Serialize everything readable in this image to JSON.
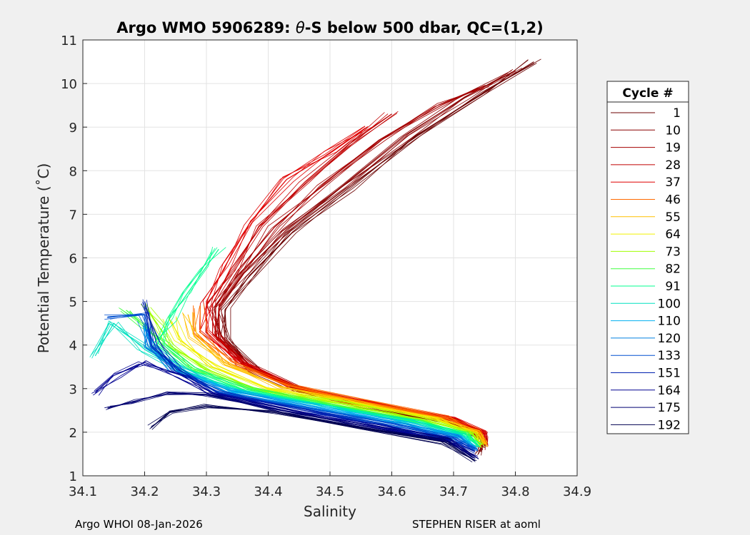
{
  "chart_data": {
    "type": "line",
    "title_pre": "Argo WMO 5906289: ",
    "title_theta": "θ",
    "title_post": "-S below 500 dbar,  QC=(1,2)",
    "xlabel": "Salinity",
    "ylabel": "Potential Temperature (˚C)",
    "xlim": [
      34.1,
      34.9
    ],
    "ylim": [
      1,
      11
    ],
    "xticks": [
      34.1,
      34.2,
      34.3,
      34.4,
      34.5,
      34.6,
      34.7,
      34.8,
      34.9
    ],
    "xtick_labels": [
      "34.1",
      "34.2",
      "34.3",
      "34.4",
      "34.5",
      "34.6",
      "34.7",
      "34.8",
      "34.9"
    ],
    "yticks": [
      1,
      2,
      3,
      4,
      5,
      6,
      7,
      8,
      9,
      10,
      11
    ],
    "ytick_labels": [
      "1",
      "2",
      "3",
      "4",
      "5",
      "6",
      "7",
      "8",
      "9",
      "10",
      "11"
    ],
    "grid": true,
    "legend_title": "Cycle #",
    "legend_position": "outside-right",
    "series": [
      {
        "name": "1",
        "color": "#6b0000",
        "values": [
          [
            34.74,
            1.5
          ],
          [
            34.75,
            1.8
          ],
          [
            34.7,
            2.2
          ],
          [
            34.55,
            2.6
          ],
          [
            34.45,
            2.95
          ],
          [
            34.38,
            3.4
          ],
          [
            34.33,
            4.1
          ],
          [
            34.33,
            4.8
          ],
          [
            34.37,
            5.6
          ],
          [
            34.44,
            6.6
          ],
          [
            34.53,
            7.6
          ],
          [
            34.64,
            8.8
          ],
          [
            34.75,
            9.8
          ],
          [
            34.83,
            10.5
          ]
        ]
      },
      {
        "name": "10",
        "color": "#8a0000",
        "values": [
          [
            34.745,
            1.6
          ],
          [
            34.75,
            1.85
          ],
          [
            34.7,
            2.22
          ],
          [
            34.55,
            2.62
          ],
          [
            34.45,
            2.97
          ],
          [
            34.37,
            3.45
          ],
          [
            34.32,
            4.15
          ],
          [
            34.32,
            4.85
          ],
          [
            34.36,
            5.65
          ],
          [
            34.43,
            6.65
          ],
          [
            34.52,
            7.65
          ],
          [
            34.62,
            8.8
          ],
          [
            34.72,
            9.7
          ],
          [
            34.8,
            10.3
          ]
        ]
      },
      {
        "name": "19",
        "color": "#a50000",
        "values": [
          [
            34.745,
            1.65
          ],
          [
            34.75,
            1.9
          ],
          [
            34.7,
            2.25
          ],
          [
            34.56,
            2.65
          ],
          [
            34.45,
            3.0
          ],
          [
            34.37,
            3.5
          ],
          [
            34.315,
            4.2
          ],
          [
            34.315,
            4.9
          ],
          [
            34.35,
            5.7
          ],
          [
            34.41,
            6.7
          ],
          [
            34.49,
            7.7
          ],
          [
            34.58,
            8.7
          ],
          [
            34.68,
            9.5
          ],
          [
            34.75,
            9.95
          ]
        ]
      },
      {
        "name": "28",
        "color": "#c00000",
        "values": [
          [
            34.75,
            1.7
          ],
          [
            34.75,
            1.95
          ],
          [
            34.7,
            2.28
          ],
          [
            34.56,
            2.68
          ],
          [
            34.45,
            3.02
          ],
          [
            34.36,
            3.55
          ],
          [
            34.31,
            4.25
          ],
          [
            34.31,
            4.95
          ],
          [
            34.34,
            5.75
          ],
          [
            34.39,
            6.75
          ],
          [
            34.46,
            7.75
          ],
          [
            34.53,
            8.6
          ],
          [
            34.6,
            9.3
          ]
        ]
      },
      {
        "name": "37",
        "color": "#e00000",
        "values": [
          [
            34.75,
            1.75
          ],
          [
            34.75,
            2.0
          ],
          [
            34.7,
            2.3
          ],
          [
            34.56,
            2.7
          ],
          [
            34.44,
            3.05
          ],
          [
            34.35,
            3.6
          ],
          [
            34.3,
            4.3
          ],
          [
            34.3,
            5.0
          ],
          [
            34.33,
            5.8
          ],
          [
            34.37,
            6.8
          ],
          [
            34.43,
            7.8
          ],
          [
            34.5,
            8.4
          ],
          [
            34.56,
            9.0
          ]
        ]
      },
      {
        "name": "46",
        "color": "#ff6a00",
        "values": [
          [
            34.75,
            1.75
          ],
          [
            34.74,
            2.02
          ],
          [
            34.69,
            2.32
          ],
          [
            34.55,
            2.72
          ],
          [
            34.43,
            3.08
          ],
          [
            34.34,
            3.62
          ],
          [
            34.29,
            4.3
          ],
          [
            34.29,
            4.9
          ]
        ]
      },
      {
        "name": "55",
        "color": "#ffc000",
        "values": [
          [
            34.75,
            1.72
          ],
          [
            34.74,
            2.0
          ],
          [
            34.68,
            2.3
          ],
          [
            34.54,
            2.7
          ],
          [
            34.42,
            3.05
          ],
          [
            34.33,
            3.55
          ],
          [
            34.28,
            4.2
          ],
          [
            34.27,
            4.7
          ]
        ]
      },
      {
        "name": "64",
        "color": "#f0f000",
        "values": [
          [
            34.745,
            1.7
          ],
          [
            34.735,
            1.98
          ],
          [
            34.67,
            2.28
          ],
          [
            34.53,
            2.68
          ],
          [
            34.4,
            3.0
          ],
          [
            34.31,
            3.5
          ],
          [
            34.26,
            4.1
          ],
          [
            34.24,
            4.6
          ]
        ]
      },
      {
        "name": "73",
        "color": "#a0ff00",
        "values": [
          [
            34.745,
            1.7
          ],
          [
            34.73,
            1.96
          ],
          [
            34.66,
            2.26
          ],
          [
            34.52,
            2.66
          ],
          [
            34.38,
            2.98
          ],
          [
            34.3,
            3.45
          ],
          [
            34.24,
            4.0
          ],
          [
            34.22,
            4.5
          ],
          [
            34.2,
            4.9
          ]
        ]
      },
      {
        "name": "82",
        "color": "#40ff40",
        "values": [
          [
            34.74,
            1.68
          ],
          [
            34.725,
            1.95
          ],
          [
            34.65,
            2.25
          ],
          [
            34.5,
            2.65
          ],
          [
            34.37,
            2.97
          ],
          [
            34.28,
            3.45
          ],
          [
            34.23,
            4.0
          ],
          [
            34.2,
            4.45
          ],
          [
            34.17,
            4.8
          ]
        ]
      },
      {
        "name": "91",
        "color": "#00ff90",
        "values": [
          [
            34.74,
            1.68
          ],
          [
            34.72,
            1.94
          ],
          [
            34.64,
            2.24
          ],
          [
            34.49,
            2.64
          ],
          [
            34.36,
            2.96
          ],
          [
            34.27,
            3.45
          ],
          [
            34.22,
            4.0
          ],
          [
            34.24,
            4.6
          ],
          [
            34.27,
            5.2
          ],
          [
            34.3,
            5.8
          ],
          [
            34.32,
            6.2
          ]
        ]
      },
      {
        "name": "100",
        "color": "#00e0c0",
        "values": [
          [
            34.735,
            1.66
          ],
          [
            34.715,
            1.92
          ],
          [
            34.63,
            2.22
          ],
          [
            34.48,
            2.62
          ],
          [
            34.35,
            2.95
          ],
          [
            34.26,
            3.4
          ],
          [
            34.2,
            3.9
          ],
          [
            34.15,
            4.5
          ],
          [
            34.12,
            3.75
          ]
        ]
      },
      {
        "name": "110",
        "color": "#00b0f0",
        "values": [
          [
            34.735,
            1.64
          ],
          [
            34.71,
            1.9
          ],
          [
            34.62,
            2.2
          ],
          [
            34.47,
            2.6
          ],
          [
            34.34,
            2.94
          ],
          [
            34.26,
            3.4
          ],
          [
            34.21,
            3.95
          ],
          [
            34.2,
            4.4
          ]
        ]
      },
      {
        "name": "120",
        "color": "#0080e0",
        "values": [
          [
            34.735,
            1.62
          ],
          [
            34.705,
            1.88
          ],
          [
            34.61,
            2.18
          ],
          [
            34.46,
            2.58
          ],
          [
            34.33,
            2.93
          ],
          [
            34.25,
            3.4
          ],
          [
            34.21,
            3.95
          ],
          [
            34.2,
            4.5
          ]
        ]
      },
      {
        "name": "133",
        "color": "#0050d0",
        "values": [
          [
            34.735,
            1.6
          ],
          [
            34.7,
            1.86
          ],
          [
            34.6,
            2.16
          ],
          [
            34.45,
            2.56
          ],
          [
            34.32,
            2.92
          ],
          [
            34.25,
            3.4
          ],
          [
            34.21,
            4.0
          ],
          [
            34.2,
            4.7
          ],
          [
            34.14,
            4.65
          ]
        ]
      },
      {
        "name": "151",
        "color": "#0020b0",
        "values": [
          [
            34.735,
            1.55
          ],
          [
            34.695,
            1.84
          ],
          [
            34.59,
            2.14
          ],
          [
            34.44,
            2.55
          ],
          [
            34.32,
            2.9
          ],
          [
            34.25,
            3.4
          ],
          [
            34.22,
            4.0
          ],
          [
            34.2,
            5.0
          ]
        ]
      },
      {
        "name": "164",
        "color": "#000090",
        "values": [
          [
            34.735,
            1.45
          ],
          [
            34.69,
            1.82
          ],
          [
            34.58,
            2.12
          ],
          [
            34.43,
            2.52
          ],
          [
            34.31,
            2.9
          ],
          [
            34.26,
            3.3
          ],
          [
            34.2,
            3.6
          ],
          [
            34.15,
            3.3
          ],
          [
            34.12,
            2.9
          ]
        ]
      },
      {
        "name": "175",
        "color": "#000070",
        "values": [
          [
            34.735,
            1.4
          ],
          [
            34.69,
            1.8
          ],
          [
            34.57,
            2.1
          ],
          [
            34.42,
            2.5
          ],
          [
            34.3,
            2.85
          ],
          [
            34.24,
            2.9
          ],
          [
            34.18,
            2.7
          ],
          [
            34.14,
            2.55
          ]
        ]
      },
      {
        "name": "192",
        "color": "#000050",
        "values": [
          [
            34.735,
            1.35
          ],
          [
            34.685,
            1.78
          ],
          [
            34.56,
            2.08
          ],
          [
            34.41,
            2.45
          ],
          [
            34.3,
            2.6
          ],
          [
            34.24,
            2.45
          ],
          [
            34.21,
            2.1
          ]
        ]
      }
    ]
  },
  "footer": {
    "left": "Argo WHOI 08-Jan-2026",
    "right": "STEPHEN RISER at aoml"
  }
}
